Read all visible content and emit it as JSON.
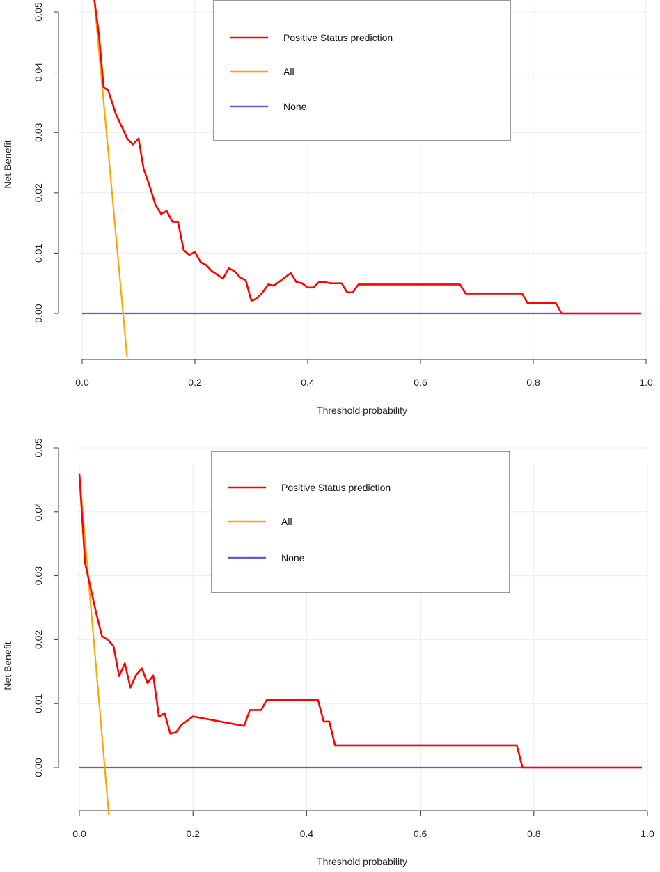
{
  "chart_data": [
    {
      "type": "line",
      "title": "",
      "xlabel": "Threshold probability",
      "ylabel": "Net Benefit",
      "xlim": [
        0.0,
        1.0
      ],
      "ylim": [
        -0.0075,
        0.0525
      ],
      "xticks": [
        "0.0",
        "0.2",
        "0.4",
        "0.6",
        "0.8",
        "1.0"
      ],
      "yticks": [
        "0.00",
        "0.01",
        "0.02",
        "0.03",
        "0.04",
        "0.05"
      ],
      "grid": true,
      "legend_position": "top-center",
      "series": [
        {
          "name": "Positive Status prediction",
          "color": "#ff0000",
          "x": [
            0.021,
            0.03,
            0.038,
            0.046,
            0.06,
            0.08,
            0.09,
            0.1,
            0.109,
            0.12,
            0.13,
            0.14,
            0.15,
            0.16,
            0.17,
            0.18,
            0.19,
            0.2,
            0.21,
            0.22,
            0.23,
            0.25,
            0.26,
            0.27,
            0.28,
            0.29,
            0.3,
            0.31,
            0.32,
            0.33,
            0.34,
            0.36,
            0.37,
            0.38,
            0.39,
            0.4,
            0.41,
            0.42,
            0.43,
            0.44,
            0.45,
            0.46,
            0.47,
            0.48,
            0.49,
            0.67,
            0.68,
            0.78,
            0.79,
            0.84,
            0.85,
            0.99
          ],
          "y": [
            0.0525,
            0.046,
            0.0375,
            0.037,
            0.033,
            0.029,
            0.028,
            0.029,
            0.024,
            0.021,
            0.018,
            0.0165,
            0.017,
            0.0152,
            0.0152,
            0.0105,
            0.0097,
            0.0102,
            0.0085,
            0.008,
            0.007,
            0.0058,
            0.0075,
            0.007,
            0.006,
            0.0055,
            0.0021,
            0.0025,
            0.0035,
            0.0048,
            0.0046,
            0.006,
            0.0067,
            0.0052,
            0.005,
            0.0043,
            0.0043,
            0.0052,
            0.0052,
            0.005,
            0.005,
            0.005,
            0.0035,
            0.0035,
            0.0048,
            0.0048,
            0.0033,
            0.0033,
            0.0017,
            0.0017,
            0.0,
            0.0
          ]
        },
        {
          "name": "All",
          "color": "#ffa500",
          "x": [
            0.021,
            0.08
          ],
          "y": [
            0.0525,
            -0.0075
          ]
        },
        {
          "name": "None",
          "color": "#6a5acd",
          "x": [
            0.0,
            0.99
          ],
          "y": [
            0.0,
            0.0
          ]
        }
      ]
    },
    {
      "type": "line",
      "title": "",
      "xlabel": "Threshold probability",
      "ylabel": "Net Benefit",
      "xlim": [
        0.0,
        1.0
      ],
      "ylim": [
        -0.0075,
        0.0525
      ],
      "xticks": [
        "0.0",
        "0.2",
        "0.4",
        "0.6",
        "0.8",
        "1.0"
      ],
      "yticks": [
        "0.00",
        "0.01",
        "0.02",
        "0.03",
        "0.04",
        "0.05"
      ],
      "grid": true,
      "legend_position": "top-center",
      "series": [
        {
          "name": "Positive Status prediction",
          "color": "#ff0000",
          "x": [
            0.0,
            0.01,
            0.02,
            0.03,
            0.04,
            0.05,
            0.06,
            0.07,
            0.08,
            0.09,
            0.1,
            0.11,
            0.12,
            0.13,
            0.14,
            0.15,
            0.16,
            0.17,
            0.18,
            0.2,
            0.29,
            0.3,
            0.31,
            0.32,
            0.33,
            0.42,
            0.43,
            0.44,
            0.45,
            0.77,
            0.78,
            0.99
          ],
          "y": [
            0.046,
            0.032,
            0.028,
            0.024,
            0.0205,
            0.02,
            0.019,
            0.0143,
            0.0163,
            0.0125,
            0.0145,
            0.0155,
            0.0132,
            0.0144,
            0.008,
            0.0085,
            0.0053,
            0.0055,
            0.0067,
            0.008,
            0.0065,
            0.009,
            0.009,
            0.009,
            0.0106,
            0.0106,
            0.0072,
            0.0072,
            0.0035,
            0.0035,
            0.0,
            0.0
          ]
        },
        {
          "name": "All",
          "color": "#ffa500",
          "x": [
            0.0,
            0.052
          ],
          "y": [
            0.046,
            -0.0075
          ]
        },
        {
          "name": "None",
          "color": "#6a5acd",
          "x": [
            0.0,
            0.99
          ],
          "y": [
            0.0,
            0.0
          ]
        }
      ]
    }
  ]
}
